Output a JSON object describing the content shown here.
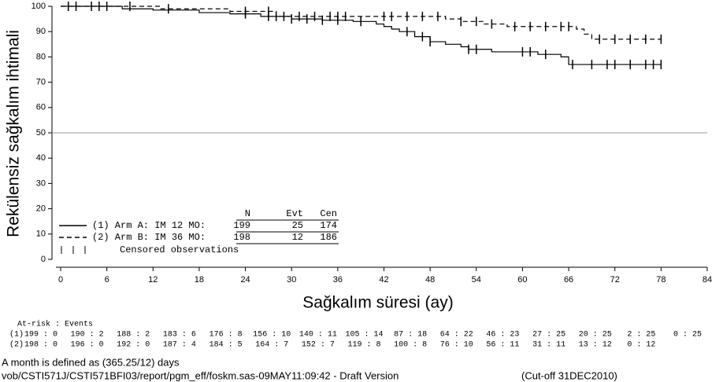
{
  "chart_data": {
    "type": "km",
    "ylabel": "Rekülensiz sağkalım ihtimali",
    "xlabel": "Sağkalım süresi (ay)",
    "xlim": [
      0,
      84
    ],
    "ylim": [
      0,
      100
    ],
    "xticks": [
      0,
      6,
      12,
      18,
      24,
      30,
      36,
      42,
      48,
      54,
      60,
      66,
      72,
      78,
      84
    ],
    "yticks": [
      0,
      10,
      20,
      30,
      40,
      50,
      60,
      70,
      80,
      90,
      100
    ],
    "refline": 50,
    "series": [
      {
        "name": "(1) Arm A: IM 12 MO:",
        "color": "#000000",
        "dash": false,
        "N": 199,
        "Evt": 25,
        "Cen": 174,
        "x": [
          0,
          8,
          12,
          18,
          22,
          26,
          30,
          34,
          38,
          41,
          42,
          43,
          44,
          46,
          48,
          50,
          52,
          53,
          56,
          62,
          65,
          66,
          78
        ],
        "values": [
          100,
          99,
          98.5,
          97.5,
          97,
          96,
          95,
          94.5,
          94,
          93,
          92,
          91,
          90,
          88,
          86,
          85,
          84,
          83,
          82,
          81,
          80,
          77,
          77
        ],
        "censor_x": [
          2,
          4,
          6,
          24,
          27,
          28,
          30,
          32,
          34,
          36,
          39,
          45,
          47,
          48,
          53,
          54,
          60,
          61,
          63,
          66.5,
          69,
          71,
          72,
          74,
          76,
          77,
          78
        ],
        "censor_values": [
          100,
          100,
          100,
          97,
          96,
          96,
          95,
          95,
          94.5,
          94.5,
          94,
          90,
          88,
          86,
          83,
          83,
          82,
          82,
          81,
          77,
          77,
          77,
          77,
          77,
          77,
          77,
          77
        ]
      },
      {
        "name": "(2) Arm B: IM 36 MO:",
        "color": "#000000",
        "dash": true,
        "N": 198,
        "Evt": 12,
        "Cen": 186,
        "x": [
          0,
          13,
          22,
          28,
          42,
          50,
          52,
          55,
          58,
          67,
          68,
          69,
          78
        ],
        "values": [
          100,
          99,
          98,
          96,
          96,
          95,
          94,
          93,
          92,
          91,
          89,
          87,
          87
        ],
        "censor_x": [
          1,
          5,
          9,
          14,
          24,
          27,
          29,
          31,
          33,
          35,
          36,
          37,
          42,
          43,
          45,
          47,
          49,
          52,
          54,
          56,
          59,
          61,
          63,
          65,
          66,
          70,
          72,
          74,
          76,
          78
        ],
        "censor_values": [
          100,
          100,
          100,
          99,
          98,
          98,
          96,
          96,
          96,
          96,
          96,
          96,
          96,
          96,
          96,
          96,
          96,
          94,
          94,
          93,
          92,
          92,
          92,
          92,
          92,
          87,
          87,
          87,
          87,
          87
        ]
      }
    ],
    "legend_header": [
      "N",
      "Evt",
      "Cen"
    ],
    "censor_label": "Censored observations",
    "at_risk": {
      "title": "At-risk : Events",
      "rows": [
        {
          "label": "(1)",
          "cells": [
            "199 : 0",
            "190 : 2",
            "188 : 2",
            "183 : 6",
            "176 : 8",
            "156 : 10",
            "140 : 11",
            "105 : 14",
            "87 : 18",
            "64 : 22",
            "46 : 23",
            "27 : 25",
            "20 : 25",
            "2 : 25",
            "0 : 25"
          ]
        },
        {
          "label": "(2)",
          "cells": [
            "198 : 0",
            "196 : 0",
            "192 : 0",
            "187 : 4",
            "184 : 5",
            "164 : 7",
            "152 : 7",
            "119 : 8",
            "100 : 8",
            "76 : 10",
            "56 : 11",
            "31 : 11",
            "13 : 12",
            "0 : 12"
          ]
        }
      ]
    },
    "notes": [
      "A month is defined as (365.25/12) days",
      "vob/CSTI571J/CSTI571BFI03/report/pgm_eff/foskm.sas-09MAY11:09:42 - Draft Version",
      "(Cut-off 31DEC2010)"
    ]
  }
}
